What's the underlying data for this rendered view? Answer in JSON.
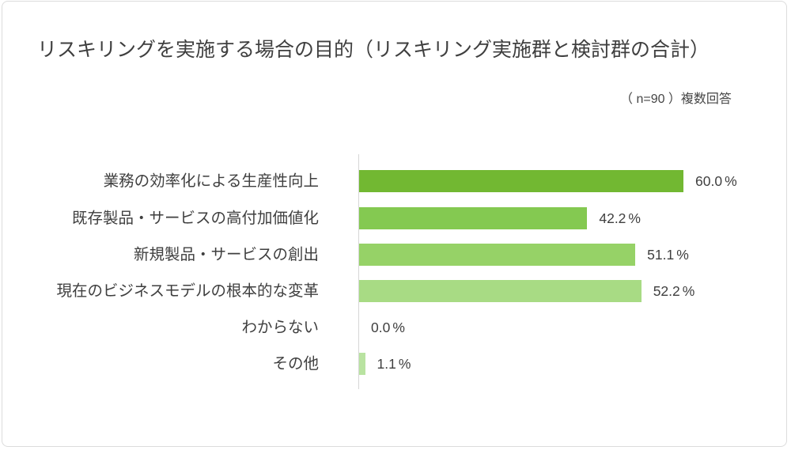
{
  "title": "リスキリングを実施する場合の目的（リスキリング実施群と検討群の合計）",
  "note": "（ n=90 ）複数回答",
  "chart_data": {
    "type": "bar",
    "orientation": "horizontal",
    "title": "リスキリングを実施する場合の目的（リスキリング実施群と検討群の合計）",
    "subtitle": "（ n=90 ）複数回答",
    "categories": [
      "業務の効率化による生産性向上",
      "既存製品・サービスの高付加価値化",
      "新規製品・サービスの創出",
      "現在のビジネスモデルの根本的な変革",
      "わからない",
      "その他"
    ],
    "values": [
      60.0,
      42.2,
      51.1,
      52.2,
      0.0,
      1.1
    ],
    "value_labels": [
      "60.0%",
      "42.2%",
      "51.1%",
      "52.2%",
      "0.0%",
      "1.1%"
    ],
    "bar_colors": [
      "#72b832",
      "#84c951",
      "#96d267",
      "#a8db84",
      "#b9e3a1",
      "#b9e3a1"
    ],
    "xlim": [
      0,
      60
    ],
    "unit": "%",
    "grid": false,
    "legend": false
  },
  "colors": {
    "text": "#3f3f3f",
    "axis_line": "#d6d6d6",
    "card_border": "#dcdcdc"
  }
}
